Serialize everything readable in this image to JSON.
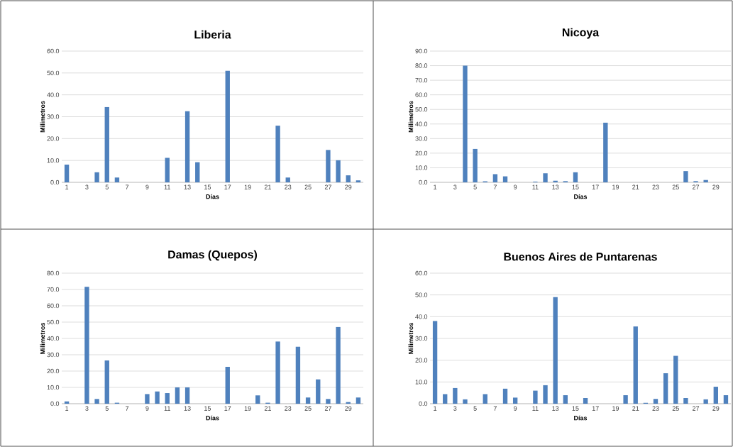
{
  "chart_data": [
    {
      "type": "bar",
      "title": "Liberia",
      "xlabel": "Días",
      "ylabel": "Milimetros",
      "categories": [
        "1",
        null,
        "3",
        null,
        "5",
        null,
        "7",
        null,
        "9",
        null,
        "11",
        null,
        "13",
        null,
        "15",
        null,
        "17",
        null,
        "19",
        null,
        "21",
        null,
        "23",
        null,
        "25",
        null,
        "27",
        null,
        "29",
        null
      ],
      "values": [
        8.1,
        0,
        0,
        4.6,
        34.4,
        2.2,
        0,
        0,
        0,
        0,
        11.2,
        0,
        32.5,
        9.2,
        0,
        0,
        51.0,
        0,
        0,
        0,
        0,
        25.9,
        2.2,
        0,
        0,
        0,
        14.8,
        10.1,
        3.2,
        0.9
      ],
      "color": "#4f81bd",
      "ylim": [
        0,
        60
      ],
      "yticks": [
        {
          "value": 0,
          "label": "0.0"
        },
        {
          "value": 10,
          "label": "10.0"
        },
        {
          "value": 20,
          "label": "20.0"
        },
        {
          "value": 30,
          "label": "30.0"
        },
        {
          "value": 40,
          "label": "40.0"
        },
        {
          "value": 50,
          "label": "50.0"
        },
        {
          "value": 60,
          "label": "60.0"
        }
      ],
      "grid": "y"
    },
    {
      "type": "bar",
      "title": "Nicoya",
      "xlabel": "Días",
      "ylabel": "Milimetros",
      "categories": [
        "1",
        null,
        "3",
        null,
        "5",
        null,
        "7",
        null,
        "9",
        null,
        "11",
        null,
        "13",
        null,
        "15",
        null,
        "17",
        null,
        "19",
        null,
        "21",
        null,
        "23",
        null,
        "25",
        null,
        "27",
        null,
        "29",
        null
      ],
      "values": [
        0,
        0,
        0,
        80.0,
        22.9,
        0.7,
        5.6,
        4.1,
        0,
        0,
        0.5,
        6.2,
        1.1,
        0.8,
        6.9,
        0,
        0,
        40.9,
        0,
        0,
        0,
        0,
        0,
        0,
        0,
        7.7,
        0.8,
        1.6,
        0,
        0
      ],
      "color": "#4f81bd",
      "ylim": [
        0,
        90
      ],
      "yticks": [
        {
          "value": 0,
          "label": "0.0"
        },
        {
          "value": 10,
          "label": "10.0"
        },
        {
          "value": 20,
          "label": "20.0"
        },
        {
          "value": 30,
          "label": "30.0"
        },
        {
          "value": 40,
          "label": "40.0"
        },
        {
          "value": 50,
          "label": "50.0"
        },
        {
          "value": 60,
          "label": "60.0"
        },
        {
          "value": 70,
          "label": "70.0"
        },
        {
          "value": 80,
          "label": "80.0"
        },
        {
          "value": 90,
          "label": "90.0"
        }
      ],
      "grid": "y"
    },
    {
      "type": "bar",
      "title": "Damas (Quepos)",
      "xlabel": "Días",
      "ylabel": "Milimetros",
      "categories": [
        "1",
        null,
        "3",
        null,
        "5",
        null,
        "7",
        null,
        "9",
        null,
        "11",
        null,
        "13",
        null,
        "15",
        null,
        "17",
        null,
        "19",
        null,
        "21",
        null,
        "23",
        null,
        "25",
        null,
        "27",
        null,
        "29",
        null
      ],
      "values": [
        1.4,
        0,
        71.6,
        2.9,
        26.5,
        0.6,
        0,
        0,
        5.9,
        7.5,
        6.5,
        10.0,
        10.0,
        0,
        0,
        0,
        22.6,
        0,
        0,
        5.1,
        0.6,
        38.1,
        0,
        34.9,
        3.8,
        14.9,
        2.9,
        47.0,
        1.0,
        3.8
      ],
      "color": "#4f81bd",
      "ylim": [
        0,
        80
      ],
      "yticks": [
        {
          "value": 0,
          "label": "0.0"
        },
        {
          "value": 10,
          "label": "10.0"
        },
        {
          "value": 20,
          "label": "20.0"
        },
        {
          "value": 30,
          "label": "30.0"
        },
        {
          "value": 40,
          "label": "40.0"
        },
        {
          "value": 50,
          "label": "50.0"
        },
        {
          "value": 60,
          "label": "60.0"
        },
        {
          "value": 70,
          "label": "70.0"
        },
        {
          "value": 80,
          "label": "80.0"
        }
      ],
      "grid": "y"
    },
    {
      "type": "bar",
      "title": "Buenos Aires de Puntarenas",
      "xlabel": "Días",
      "ylabel": "Milimetros",
      "categories": [
        "1",
        null,
        "3",
        null,
        "5",
        null,
        "7",
        null,
        "9",
        null,
        "11",
        null,
        "13",
        null,
        "15",
        null,
        "17",
        null,
        "19",
        null,
        "21",
        null,
        "23",
        null,
        "25",
        null,
        "27",
        null,
        "29",
        null
      ],
      "values": [
        38.0,
        4.4,
        7.2,
        2.0,
        0,
        4.4,
        0,
        6.9,
        2.8,
        0,
        6.0,
        8.5,
        49.0,
        3.9,
        0,
        2.6,
        0,
        0,
        0,
        3.9,
        35.5,
        0.4,
        2.2,
        14.0,
        22.0,
        2.6,
        0,
        2.0,
        7.8,
        3.9
      ],
      "color": "#4f81bd",
      "ylim": [
        0,
        60
      ],
      "yticks": [
        {
          "value": 0,
          "label": "0.0"
        },
        {
          "value": 10,
          "label": "10.0"
        },
        {
          "value": 20,
          "label": "20.0"
        },
        {
          "value": 30,
          "label": "30.0"
        },
        {
          "value": 40,
          "label": "40.0"
        },
        {
          "value": 50,
          "label": "50.0"
        },
        {
          "value": 60,
          "label": "60.0"
        }
      ],
      "grid": "y"
    }
  ]
}
